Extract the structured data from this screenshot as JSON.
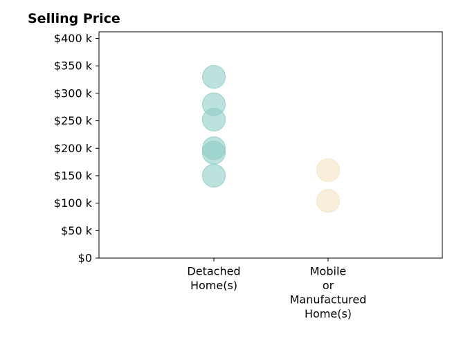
{
  "chart_data": {
    "type": "scatter",
    "title": "Selling Price",
    "xlabel": "",
    "ylabel": "",
    "categories": [
      [
        "Detached",
        "Home(s)"
      ],
      [
        "Mobile",
        "or",
        "Manufactured",
        "Home(s)"
      ]
    ],
    "y_ticks": [
      {
        "value": 0,
        "label": "$0"
      },
      {
        "value": 50,
        "label": "$50 k"
      },
      {
        "value": 100,
        "label": "$100 k"
      },
      {
        "value": 150,
        "label": "$150 k"
      },
      {
        "value": 200,
        "label": "$200 k"
      },
      {
        "value": 250,
        "label": "$250 k"
      },
      {
        "value": 300,
        "label": "$300 k"
      },
      {
        "value": 350,
        "label": "$350 k"
      },
      {
        "value": 400,
        "label": "$400 k"
      }
    ],
    "ylim": [
      0,
      412
    ],
    "grid": false,
    "series": [
      {
        "category_index": 0,
        "color": "#8ecfc6",
        "values": [
          330,
          280,
          252,
          200,
          192,
          150
        ]
      },
      {
        "category_index": 1,
        "color": "#f5e3bf",
        "values": [
          160,
          104
        ]
      }
    ]
  }
}
